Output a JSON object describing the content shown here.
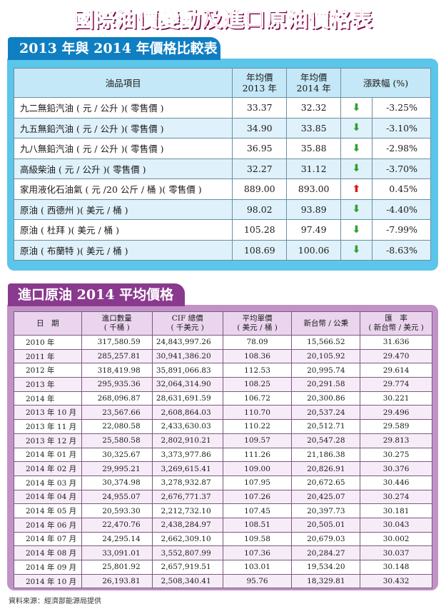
{
  "title": "國際油價變動及進口原油價格表",
  "section1": {
    "tab_title": "2013 年與 2014 年價格比較表",
    "headers": {
      "item": "油品項目",
      "avg2013_l1": "年均價",
      "avg2013_l2": "2013 年",
      "avg2014_l1": "年均價",
      "avg2014_l2": "2014 年",
      "change": "漲跌幅 (%)"
    },
    "rows": [
      {
        "name": "九二無鉛汽油 ( 元 / 公升 )( 零售價 )",
        "p2013": "33.37",
        "p2014": "32.32",
        "dir": "down",
        "pct": "-3.25%"
      },
      {
        "name": "九五無鉛汽油 ( 元 / 公升 )( 零售價 )",
        "p2013": "34.90",
        "p2014": "33.85",
        "dir": "down",
        "pct": "-3.10%"
      },
      {
        "name": "九八無鉛汽油 ( 元 / 公升 )( 零售價 )",
        "p2013": "36.95",
        "p2014": "35.88",
        "dir": "down",
        "pct": "-2.98%"
      },
      {
        "name": "高級柴油 ( 元 / 公升 )( 零售價 )",
        "p2013": "32.27",
        "p2014": "31.12",
        "dir": "down",
        "pct": "-3.70%"
      },
      {
        "name": "家用液化石油氣 ( 元 /20 公斤 / 桶 )( 零售價 )",
        "p2013": "889.00",
        "p2014": "893.00",
        "dir": "up",
        "pct": "0.45%"
      },
      {
        "name": "原油 ( 西德州 )( 美元 / 桶 )",
        "p2013": "98.02",
        "p2014": "93.89",
        "dir": "down",
        "pct": "-4.40%"
      },
      {
        "name": "原油 ( 杜拜 )( 美元 / 桶 )",
        "p2013": "105.28",
        "p2014": "97.49",
        "dir": "down",
        "pct": "-7.99%"
      },
      {
        "name": "原油 ( 布蘭特 )( 美元 / 桶 )",
        "p2013": "108.69",
        "p2014": "100.06",
        "dir": "down",
        "pct": "-8.63%"
      }
    ]
  },
  "section2": {
    "tab_title": "進口原油 2014 平均價格",
    "headers": {
      "date": "日　期",
      "qty_l1": "進口數量",
      "qty_l2": "( 千桶 )",
      "cif_l1": "CIF 總價",
      "cif_l2": "( 千美元 )",
      "unit_l1": "平均單價",
      "unit_l2": "( 美元 / 桶 )",
      "twd": "新台幣 / 公秉",
      "fx_l1": "匯　率",
      "fx_l2": "( 新台幣 / 美元 )"
    },
    "rows": [
      {
        "date": "2010 年",
        "qty": "317,580.59",
        "cif": "24,843,997.26",
        "unit": "78.09",
        "twd": "15,566.52",
        "fx": "31.636"
      },
      {
        "date": "2011 年",
        "qty": "285,257.81",
        "cif": "30,941,386.20",
        "unit": "108.36",
        "twd": "20,105.92",
        "fx": "29.470"
      },
      {
        "date": "2012 年",
        "qty": "318,419.98",
        "cif": "35,891,066.83",
        "unit": "112.53",
        "twd": "20,995.74",
        "fx": "29.614"
      },
      {
        "date": "2013 年",
        "qty": "295,935.36",
        "cif": "32,064,314.90",
        "unit": "108.25",
        "twd": "20,291.58",
        "fx": "29.774"
      },
      {
        "date": "2014 年",
        "qty": "268,096.87",
        "cif": "28,631,691.59",
        "unit": "106.72",
        "twd": "20,300.86",
        "fx": "30.221"
      },
      {
        "date": "2013 年 10 月",
        "qty": "23,567.66",
        "cif": "2,608,864.03",
        "unit": "110.70",
        "twd": "20,537.24",
        "fx": "29.496"
      },
      {
        "date": "2013 年 11 月",
        "qty": "22,080.58",
        "cif": "2,433,630.03",
        "unit": "110.22",
        "twd": "20,512.71",
        "fx": "29.589"
      },
      {
        "date": "2013 年 12 月",
        "qty": "25,580.58",
        "cif": "2,802,910.21",
        "unit": "109.57",
        "twd": "20,547.28",
        "fx": "29.813"
      },
      {
        "date": "2014 年 01 月",
        "qty": "30,325.67",
        "cif": "3,373,977.86",
        "unit": "111.26",
        "twd": "21,186.38",
        "fx": "30.275"
      },
      {
        "date": "2014 年 02 月",
        "qty": "29,995.21",
        "cif": "3,269,615.41",
        "unit": "109.00",
        "twd": "20,826.91",
        "fx": "30.376"
      },
      {
        "date": "2014 年 03 月",
        "qty": "30,374.98",
        "cif": "3,278,932.87",
        "unit": "107.95",
        "twd": "20,672.65",
        "fx": "30.446"
      },
      {
        "date": "2014 年 04 月",
        "qty": "24,955.07",
        "cif": "2,676,771.37",
        "unit": "107.26",
        "twd": "20,425.07",
        "fx": "30.274"
      },
      {
        "date": "2014 年 05 月",
        "qty": "20,593.30",
        "cif": "2,212,732.10",
        "unit": "107.45",
        "twd": "20,397.73",
        "fx": "30.181"
      },
      {
        "date": "2014 年 06 月",
        "qty": "22,470.76",
        "cif": "2,438,284.97",
        "unit": "108.51",
        "twd": "20,505.01",
        "fx": "30.043"
      },
      {
        "date": "2014 年 07 月",
        "qty": "24,295.14",
        "cif": "2,662,309.10",
        "unit": "109.58",
        "twd": "20,679.03",
        "fx": "30.002"
      },
      {
        "date": "2014 年 08 月",
        "qty": "33,091.01",
        "cif": "3,552,807.99",
        "unit": "107.36",
        "twd": "20,284.27",
        "fx": "30.037"
      },
      {
        "date": "2014 年 09 月",
        "qty": "25,801.92",
        "cif": "2,657,919.51",
        "unit": "103.01",
        "twd": "19,534.20",
        "fx": "30.148"
      },
      {
        "date": "2014 年 10 月",
        "qty": "26,193.81",
        "cif": "2,508,340.41",
        "unit": "95.76",
        "twd": "18,329.81",
        "fx": "30.432"
      }
    ]
  },
  "footer": "資料來源：經濟部能源局提供",
  "colors": {
    "title": "#e8188a",
    "sec1": "#0f7fc2",
    "sec2": "#8a3a8e",
    "down": "#2ea12e",
    "up": "#e01818"
  }
}
